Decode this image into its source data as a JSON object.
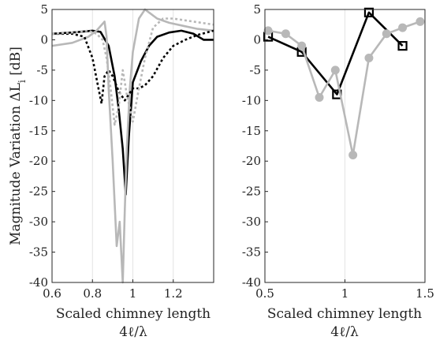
{
  "chart_data": [
    {
      "type": "line",
      "xlabel": "Scaled chimney length",
      "xlabel_expr": "4ℓ/λ",
      "ylabel": "Magnitude Variation ΔL",
      "ylabel_sub": "i",
      "ylabel_unit": "[dB]",
      "xlim": [
        0.6,
        1.4
      ],
      "ylim": [
        -40,
        5
      ],
      "xticks": [
        "0.6",
        "0.8",
        "1",
        "1.2"
      ],
      "yticks": [
        "5",
        "0",
        "-5",
        "-10",
        "-15",
        "-20",
        "-25",
        "-30",
        "-35",
        "-40"
      ],
      "grid": "x",
      "series": [
        {
          "style": "solid-black",
          "color": "#000000",
          "x": [
            0.6,
            0.7,
            0.8,
            0.84,
            0.88,
            0.91,
            0.93,
            0.95,
            0.965,
            0.98,
            1.0,
            1.04,
            1.08,
            1.12,
            1.18,
            1.24,
            1.3,
            1.35,
            1.4
          ],
          "y": [
            1.0,
            1.2,
            1.5,
            1.3,
            -1.0,
            -6.0,
            -11.5,
            -18.0,
            -25.5,
            -16.0,
            -7.0,
            -3.5,
            -1.0,
            0.5,
            1.2,
            1.5,
            1.0,
            0.0,
            0.0
          ]
        },
        {
          "style": "solid-gray",
          "color": "#b8b8b8",
          "x": [
            0.6,
            0.7,
            0.78,
            0.82,
            0.86,
            0.87,
            0.88,
            0.9,
            0.92,
            0.935,
            0.95,
            0.96,
            0.97,
            0.985,
            1.0,
            1.03,
            1.06,
            1.08,
            1.12,
            1.18,
            1.25,
            1.32,
            1.4
          ],
          "y": [
            -1.0,
            -0.5,
            0.5,
            1.5,
            3.0,
            0.5,
            -8.0,
            -20.0,
            -34.0,
            -30.0,
            -40.0,
            -28.0,
            -18.0,
            -8.0,
            -2.0,
            3.5,
            5.0,
            4.5,
            3.5,
            2.8,
            2.3,
            1.8,
            1.5
          ]
        },
        {
          "style": "dotted-black",
          "color": "#000000",
          "x": [
            0.6,
            0.7,
            0.76,
            0.8,
            0.83,
            0.845,
            0.86,
            0.88,
            0.9,
            0.93,
            0.96,
            1.0,
            1.03,
            1.06,
            1.1,
            1.15,
            1.2,
            1.26,
            1.32,
            1.4
          ],
          "y": [
            1.0,
            1.0,
            0.5,
            -3.0,
            -8.0,
            -10.5,
            -6.0,
            -5.0,
            -6.0,
            -8.5,
            -10.0,
            -8.0,
            -8.0,
            -7.5,
            -6.0,
            -3.0,
            -1.0,
            0.0,
            0.8,
            1.5
          ]
        },
        {
          "style": "dotted-gray",
          "color": "#b8b8b8",
          "x": [
            0.6,
            0.7,
            0.78,
            0.82,
            0.85,
            0.87,
            0.89,
            0.91,
            0.93,
            0.95,
            0.97,
            1.0,
            1.03,
            1.06,
            1.1,
            1.15,
            1.2,
            1.3,
            1.4
          ],
          "y": [
            1.0,
            1.2,
            1.5,
            1.0,
            0.0,
            -3.0,
            -8.0,
            -14.0,
            -11.0,
            -5.0,
            -9.0,
            -13.5,
            -8.0,
            -3.0,
            2.0,
            3.5,
            3.5,
            3.0,
            2.5
          ]
        }
      ]
    },
    {
      "type": "line",
      "xlabel": "Scaled chimney length",
      "xlabel_expr": "4ℓ/λ",
      "xlim": [
        0.5,
        1.5
      ],
      "ylim": [
        -40,
        5
      ],
      "xticks": [
        "0.5",
        "1",
        "1.5"
      ],
      "yticks": [
        "5",
        "0",
        "-5",
        "-10",
        "-15",
        "-20",
        "-25",
        "-30",
        "-35",
        "-40"
      ],
      "grid": "x",
      "series": [
        {
          "style": "black-square-markers",
          "color": "#000000",
          "marker": "square",
          "x": [
            0.52,
            0.73,
            0.95,
            1.15,
            1.36
          ],
          "y": [
            0.5,
            -2.0,
            -9.0,
            4.5,
            -1.0
          ]
        },
        {
          "style": "gray-circle-markers",
          "color": "#b8b8b8",
          "marker": "circle",
          "x": [
            0.52,
            0.63,
            0.73,
            0.84,
            0.94,
            1.05,
            1.15,
            1.26,
            1.36,
            1.47
          ],
          "y": [
            1.5,
            1.0,
            -1.0,
            -9.5,
            -5.0,
            -19.0,
            -3.0,
            1.0,
            2.0,
            3.0
          ]
        }
      ]
    }
  ]
}
